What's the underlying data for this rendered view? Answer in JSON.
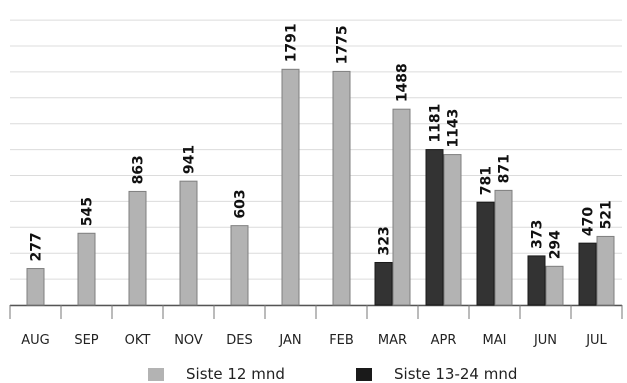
{
  "chart_data": {
    "type": "bar",
    "categories": [
      "AUG",
      "SEP",
      "OKT",
      "NOV",
      "DES",
      "JAN",
      "FEB",
      "MAR",
      "APR",
      "MAI",
      "JUN",
      "JUL"
    ],
    "series": [
      {
        "name": "Siste 13-24 mnd",
        "color": "#333333",
        "values": [
          null,
          null,
          null,
          null,
          null,
          null,
          null,
          323,
          1181,
          781,
          373,
          470
        ]
      },
      {
        "name": "Siste 12 mnd",
        "color": "#b3b3b3",
        "values": [
          277,
          545,
          863,
          941,
          603,
          1791,
          1775,
          1488,
          1143,
          871,
          294,
          521
        ]
      }
    ],
    "ylim": [
      0,
      2000
    ],
    "grid": true,
    "legend_position": "bottom"
  }
}
